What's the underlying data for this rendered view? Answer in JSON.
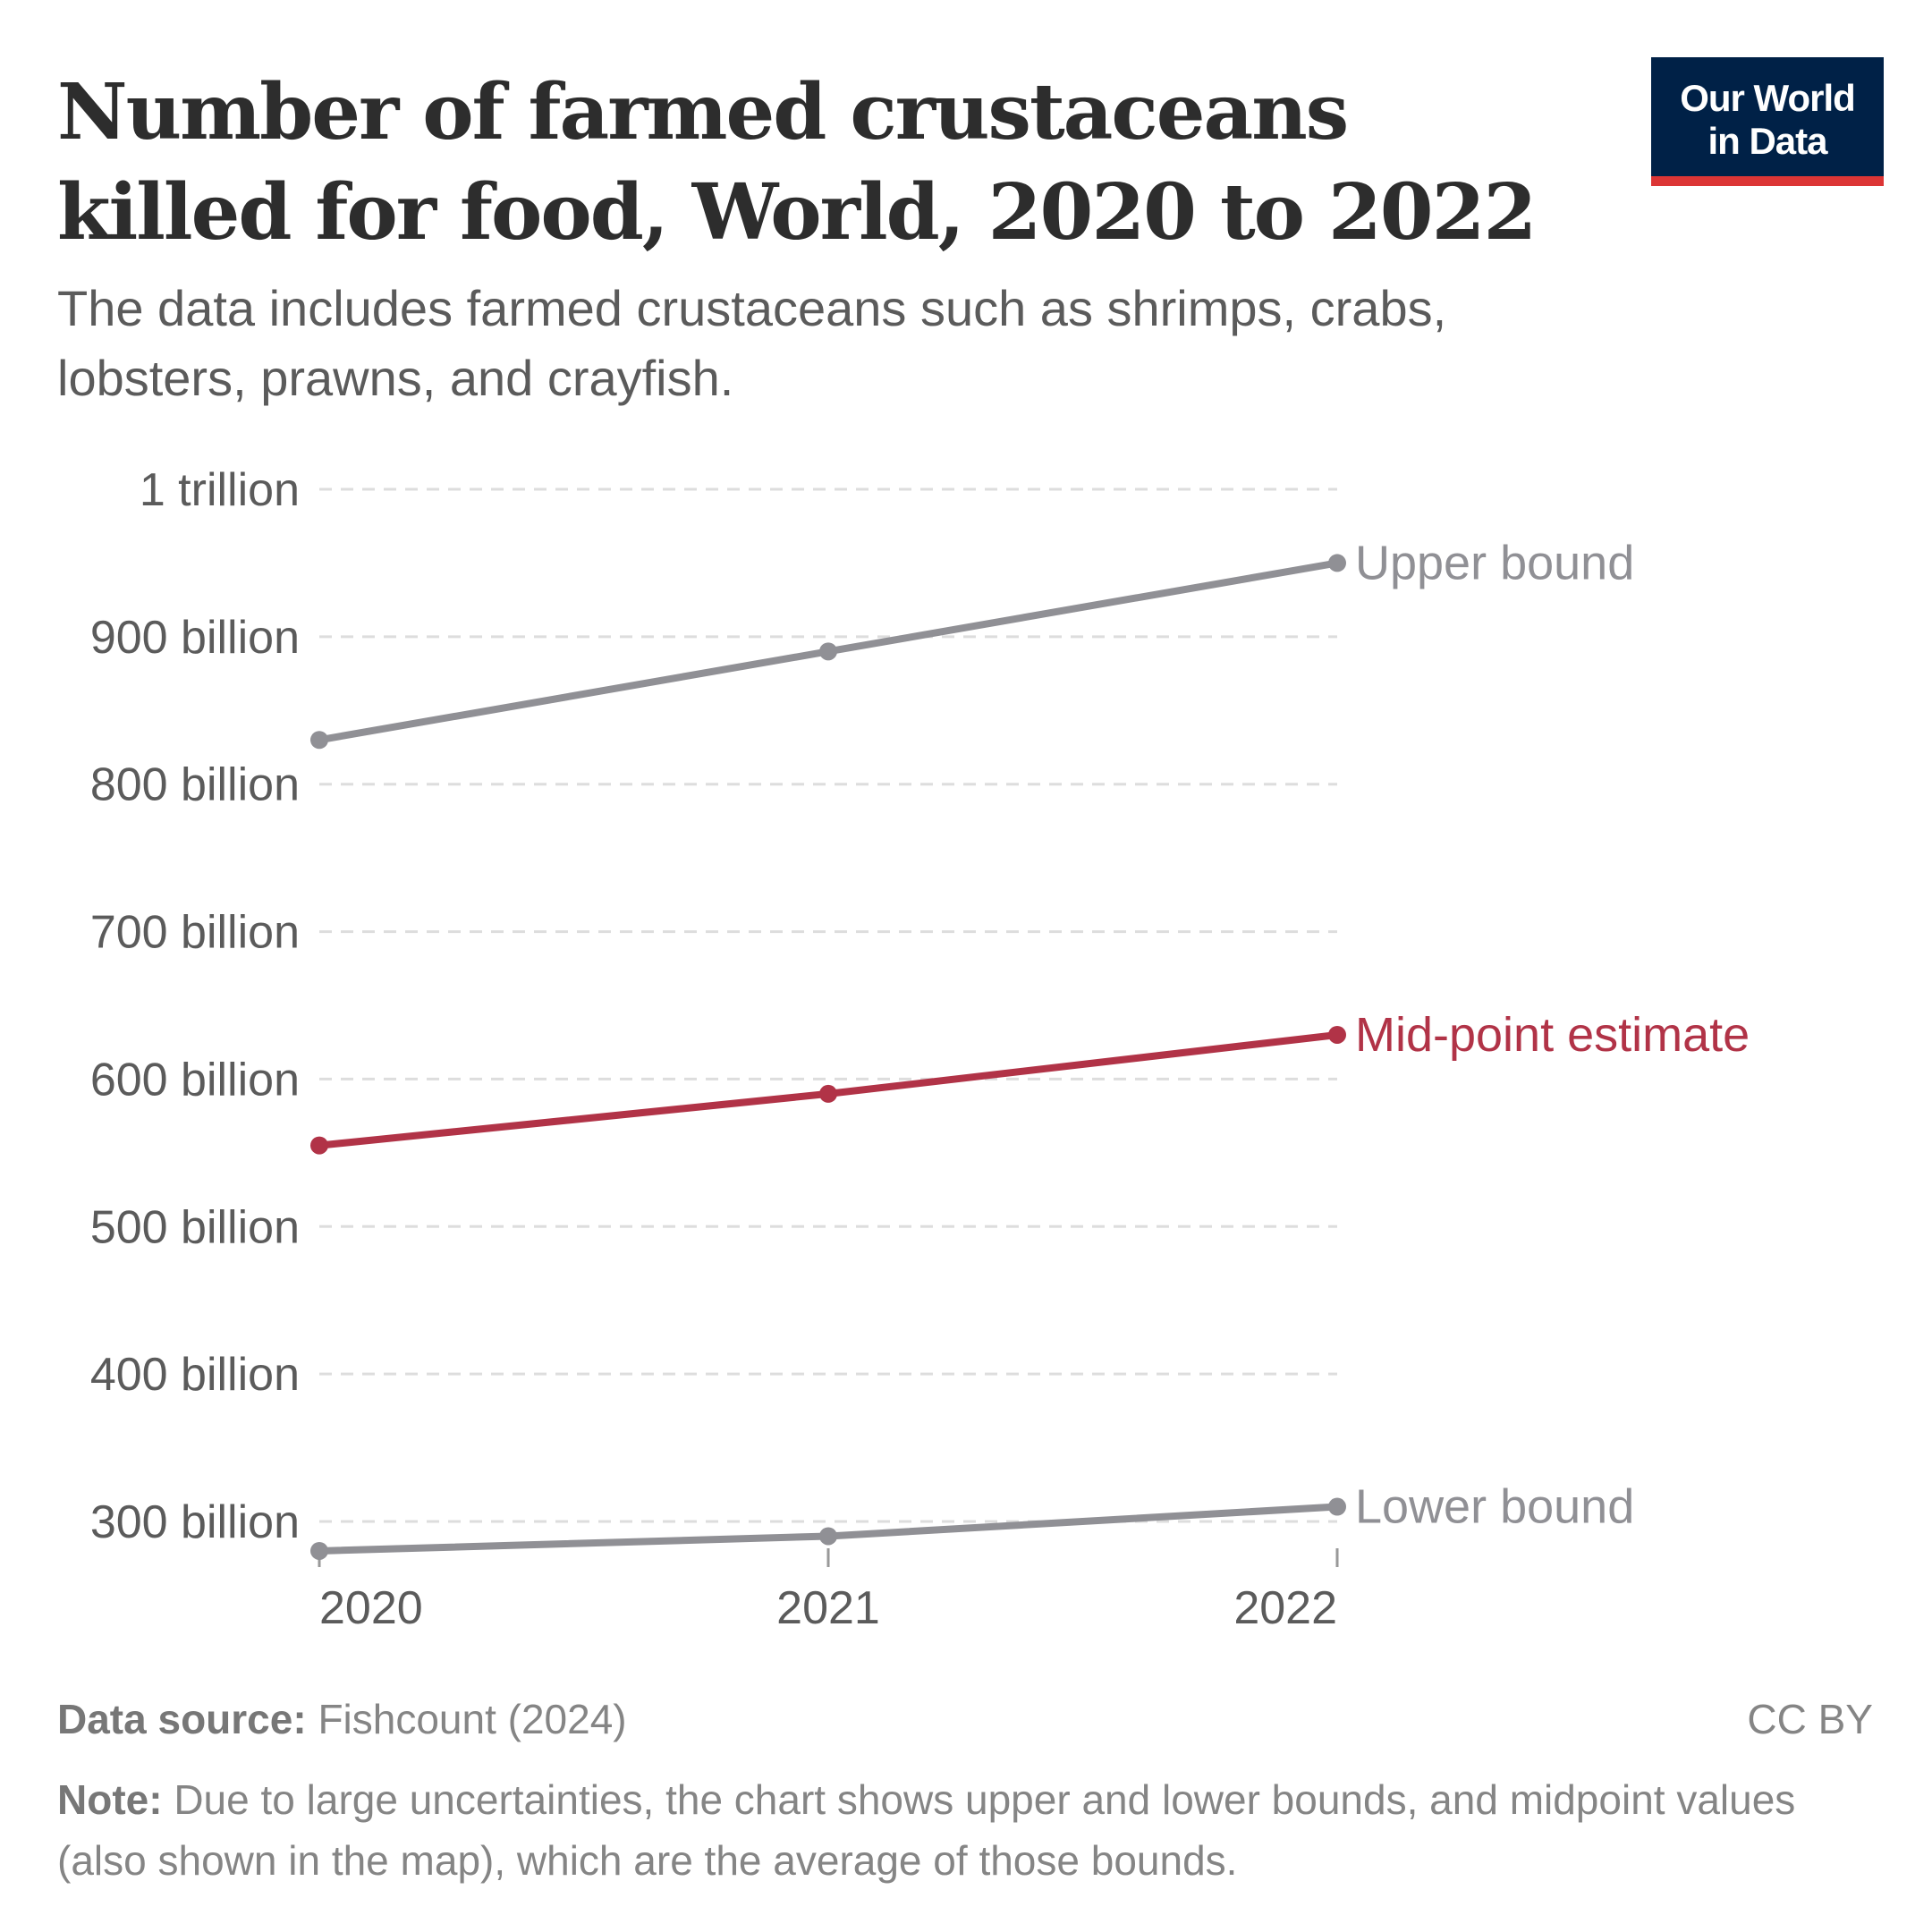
{
  "title": "Number of farmed crustaceans killed for food, World, 2020 to 2022",
  "subtitle": "The data includes farmed crustaceans such as shrimps, crabs, lobsters, prawns, and crayfish.",
  "logo": {
    "line1": "Our World",
    "line2": "in Data",
    "bg_color": "#002147",
    "accent_color": "#dc3535"
  },
  "chart_data": {
    "type": "line",
    "x": [
      2020,
      2021,
      2022
    ],
    "x_tick_labels": [
      "2020",
      "2021",
      "2022"
    ],
    "y_ticks": [
      300,
      400,
      500,
      600,
      700,
      800,
      900,
      1000
    ],
    "y_tick_labels": [
      "300 billion",
      "400 billion",
      "500 billion",
      "600 billion",
      "700 billion",
      "800 billion",
      "900 billion",
      "1 trillion"
    ],
    "y_unit": "billion",
    "ylim": [
      280,
      1000
    ],
    "grid": "horizontal dashed",
    "legend": "inline labels at line ends",
    "series": [
      {
        "name": "Upper bound",
        "values": [
          830,
          890,
          950
        ],
        "color": "#909095"
      },
      {
        "name": "Mid-point estimate",
        "values": [
          555,
          590,
          630
        ],
        "color": "#b13347"
      },
      {
        "name": "Lower bound",
        "values": [
          280,
          290,
          310
        ],
        "color": "#909095"
      }
    ]
  },
  "footer": {
    "source_label": "Data source:",
    "source": "Fishcount (2024)",
    "license": "CC BY",
    "note_label": "Note:",
    "note": "Due to large uncertainties, the chart shows upper and lower bounds, and midpoint values (also shown in the map), which are the average of those bounds."
  }
}
